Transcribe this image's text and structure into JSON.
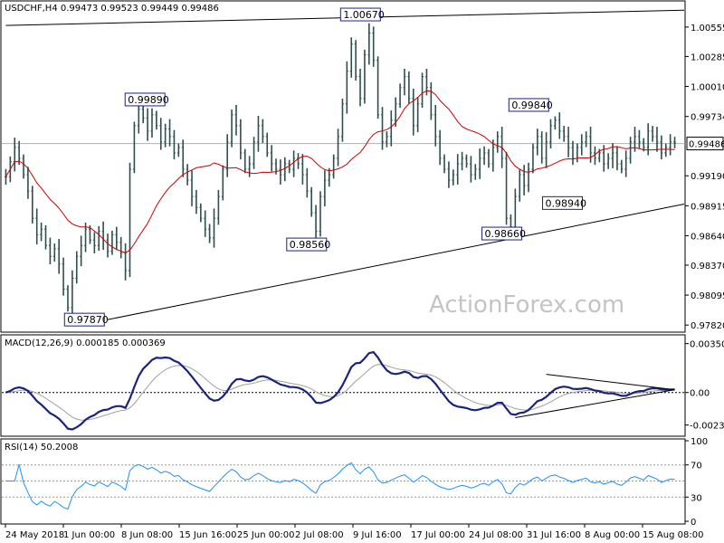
{
  "header": {
    "main": "USDCHF,H4  0.99473 0.99523 0.99449 0.99486",
    "macd": "MACD(12,26,9) 0.000185 0.000369",
    "rsi": "RSI(14) 50.2008"
  },
  "watermark": "ActionForex.com",
  "current_price_label": "0.99486",
  "chart_data": [
    {
      "type": "candlestick",
      "title": "USDCHF,H4",
      "ohlc_readout": [
        0.99473,
        0.99523,
        0.99449,
        0.99486
      ],
      "ylim": [
        0.9778,
        1.0077
      ],
      "y_ticks": [
        {
          "value": 1.00555,
          "label": "1.00555"
        },
        {
          "value": 1.00285,
          "label": "1.00285"
        },
        {
          "value": 1.0001,
          "label": "1.00010"
        },
        {
          "value": 0.99734,
          "label": "0.99734"
        },
        {
          "value": 0.9919,
          "label": "0.99190"
        },
        {
          "value": 0.98915,
          "label": "0.98915"
        },
        {
          "value": 0.9864,
          "label": "0.98640"
        },
        {
          "value": 0.9837,
          "label": "0.98370"
        },
        {
          "value": 0.98095,
          "label": "0.98095"
        },
        {
          "value": 0.9782,
          "label": "0.97820"
        }
      ],
      "current_price": 0.99486,
      "x_tick_labels": [
        "24 May 2018",
        "1 Jun 00:00",
        "8 Jun 08:00",
        "15 Jun 16:00",
        "25 Jun 00:00",
        "2 Jul 08:00",
        "9 Jul 16:00",
        "17 Jul 00:00",
        "24 Jul 08:00",
        "31 Jul 16:00",
        "8 Aug 00:00",
        "15 Aug 08:00"
      ],
      "close_series": [
        0.9918,
        0.9932,
        0.9945,
        0.9935,
        0.992,
        0.9905,
        0.988,
        0.9865,
        0.987,
        0.9855,
        0.9845,
        0.9852,
        0.9838,
        0.9815,
        0.9798,
        0.9825,
        0.9845,
        0.9855,
        0.987,
        0.986,
        0.9855,
        0.9868,
        0.986,
        0.985,
        0.9865,
        0.9858,
        0.9848,
        0.9832,
        0.9925,
        0.9965,
        0.998,
        0.9972,
        0.996,
        0.9975,
        0.9965,
        0.995,
        0.9962,
        0.9955,
        0.994,
        0.9945,
        0.9925,
        0.9915,
        0.99,
        0.989,
        0.988,
        0.987,
        0.9862,
        0.988,
        0.99,
        0.9925,
        0.995,
        0.9975,
        0.9965,
        0.994,
        0.9925,
        0.993,
        0.995,
        0.9965,
        0.9955,
        0.994,
        0.993,
        0.9925,
        0.992,
        0.993,
        0.9925,
        0.9935,
        0.993,
        0.992,
        0.9905,
        0.9885,
        0.9868,
        0.99,
        0.9915,
        0.992,
        0.9935,
        0.9955,
        0.9985,
        1.0015,
        1.004,
        1.001,
        0.999,
        1.003,
        1.005,
        1.0025,
        0.9975,
        0.995,
        0.9955,
        0.997,
        0.9985,
        1.0,
        1.001,
        0.999,
        0.9965,
        0.9985,
        1.001,
        1.0,
        0.9975,
        0.9955,
        0.9935,
        0.9925,
        0.9915,
        0.992,
        0.993,
        0.9935,
        0.993,
        0.992,
        0.9925,
        0.9935,
        0.994,
        0.993,
        0.9945,
        0.9955,
        0.9935,
        0.988,
        0.9872,
        0.99,
        0.992,
        0.991,
        0.9925,
        0.9945,
        0.9955,
        0.9935,
        0.995,
        0.9965,
        0.997,
        0.996,
        0.9955,
        0.9945,
        0.9935,
        0.9945,
        0.995,
        0.9955,
        0.994,
        0.9935,
        0.994,
        0.993,
        0.9935,
        0.994,
        0.993,
        0.9925,
        0.9935,
        0.995,
        0.9955,
        0.995,
        0.9945,
        0.996,
        0.9955,
        0.995,
        0.994,
        0.9945,
        0.995,
        0.9949
      ]
    },
    {
      "type": "line",
      "title": "MACD(12,26,9)",
      "readout": [
        0.000185,
        0.000369
      ],
      "ylim": [
        -0.003,
        0.004
      ],
      "y_ticks": [
        {
          "value": 0.003505,
          "label": "0.003505"
        },
        {
          "value": 0.0,
          "label": "0.00"
        },
        {
          "value": -0.002328,
          "label": "-0.002328"
        }
      ]
    },
    {
      "type": "line",
      "title": "RSI(14)",
      "readout": 50.2008,
      "ylim": [
        0,
        100
      ],
      "levels": [
        70,
        50,
        30
      ],
      "y_ticks": [
        {
          "value": 100,
          "label": "100"
        },
        {
          "value": 70,
          "label": "70"
        },
        {
          "value": 30,
          "label": "30"
        },
        {
          "value": 0,
          "label": "0"
        }
      ]
    }
  ],
  "annotations": [
    {
      "label": "1.00670",
      "value": 1.0067
    },
    {
      "label": "0.99890",
      "value": 0.9989
    },
    {
      "label": "0.98560",
      "value": 0.9856
    },
    {
      "label": "0.97870",
      "value": 0.9787
    },
    {
      "label": "0.99840",
      "value": 0.9984
    },
    {
      "label": "0.98940",
      "value": 0.9894
    },
    {
      "label": "0.98660",
      "value": 0.9866
    }
  ],
  "colors": {
    "candle": "#2f4f4f",
    "ma": "#cc0000",
    "macd": "#1a237e",
    "signal": "#a0a0a0",
    "rsi": "#1e90ff",
    "trendline": "#000000",
    "label_box_border": "#1a237e",
    "watermark": "#c4c4c4"
  }
}
